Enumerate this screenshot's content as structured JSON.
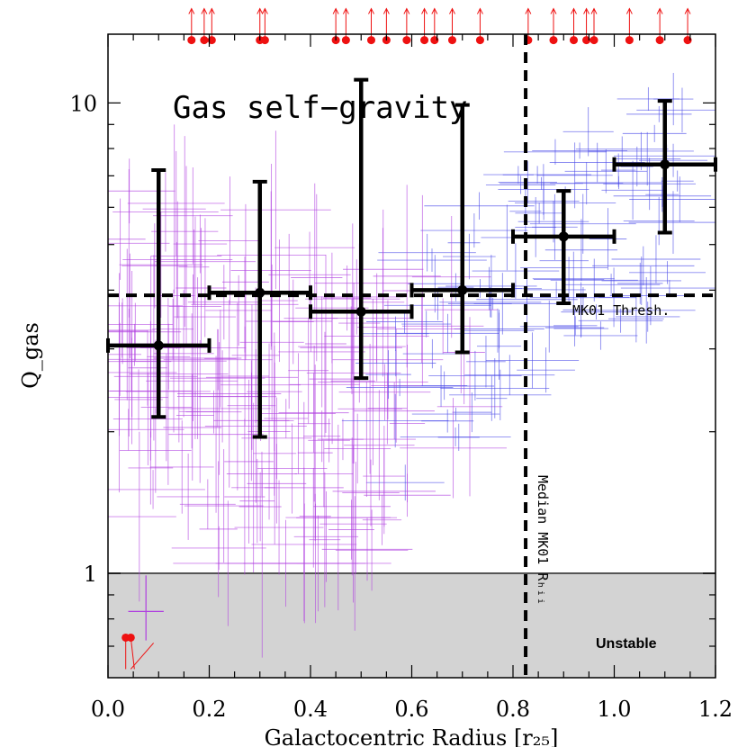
{
  "chart_data": {
    "type": "scatter",
    "title": "",
    "xlabel": "Galactocentric Radius [r₂₅]",
    "ylabel": "Q_gas",
    "xlim": [
      0.0,
      1.2
    ],
    "ylim": [
      0.6,
      14.0
    ],
    "yscale": "log",
    "x_ticks": [
      "0.0",
      "0.2",
      "0.4",
      "0.6",
      "0.8",
      "1.0",
      "1.2"
    ],
    "y_ticks": [
      "1",
      "10"
    ],
    "colors": {
      "binned": "#000000",
      "inner_points": "#b040e0",
      "outer_points": "#4a4ae8",
      "limits": "#ee1111",
      "unstable_region": "#d3d3d3"
    },
    "binned_medians": [
      {
        "x": 0.1,
        "y": 3.05,
        "xerr": 0.1,
        "ylow": 2.15,
        "yhigh": 7.2
      },
      {
        "x": 0.3,
        "y": 3.95,
        "xerr": 0.1,
        "ylow": 1.95,
        "yhigh": 6.8
      },
      {
        "x": 0.5,
        "y": 3.6,
        "xerr": 0.1,
        "ylow": 2.6,
        "yhigh": 11.2
      },
      {
        "x": 0.7,
        "y": 4.0,
        "xerr": 0.1,
        "ylow": 2.95,
        "yhigh": 9.9
      },
      {
        "x": 0.9,
        "y": 5.2,
        "xerr": 0.1,
        "ylow": 3.75,
        "yhigh": 6.5
      },
      {
        "x": 1.1,
        "y": 7.4,
        "xerr": 0.1,
        "ylow": 5.3,
        "yhigh": 10.1
      }
    ],
    "lower_limits_x": [
      0.165,
      0.19,
      0.205,
      0.3,
      0.31,
      0.45,
      0.47,
      0.52,
      0.55,
      0.59,
      0.625,
      0.645,
      0.68,
      0.735,
      0.83,
      0.88,
      0.92,
      0.945,
      0.96,
      1.03,
      1.09,
      1.145
    ],
    "lower_limits_y": 13.6,
    "upper_limits": [
      {
        "x": 0.035,
        "y": 0.73
      },
      {
        "x": 0.045,
        "y": 0.73
      }
    ],
    "threshold": {
      "y": 3.9,
      "label": "MK01 Thresh."
    },
    "median_radius": {
      "x": 0.825,
      "label": "Median  MK01 Rₕᵢᵢ"
    },
    "unstable_label": "Unstable",
    "unstable_below": 1.0,
    "annotation": "Gas self−gravity"
  }
}
